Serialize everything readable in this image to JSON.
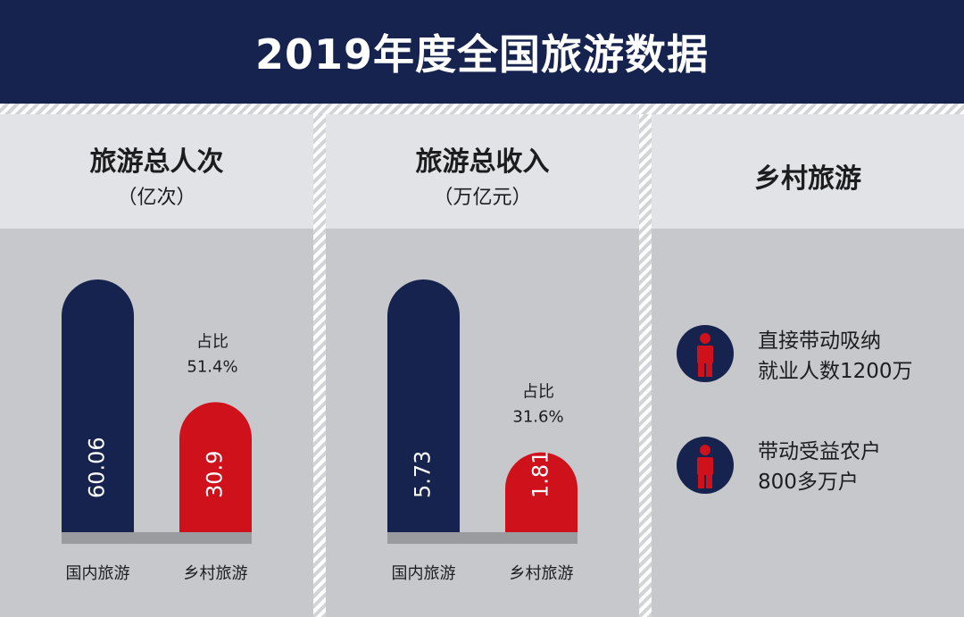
{
  "title": "2019年度全国旅游数据",
  "colors": {
    "navy": "#15234e",
    "red": "#cf111b",
    "base": "#9a9b9f"
  },
  "panels": [
    {
      "title": "旅游总人次",
      "unit": "（亿次）"
    },
    {
      "title": "旅游总收入",
      "unit": "（万亿元）"
    },
    {
      "title": "乡村旅游"
    }
  ],
  "chart_data": [
    {
      "type": "bar",
      "title": "旅游总人次",
      "ylabel": "（亿次）",
      "categories": [
        "国内旅游",
        "乡村旅游"
      ],
      "values": [
        60.06,
        30.9
      ],
      "value_labels": [
        "60.06",
        "30.9"
      ],
      "annotation": {
        "label": "占比",
        "value": "51.4%"
      }
    },
    {
      "type": "bar",
      "title": "旅游总收入",
      "ylabel": "（万亿元）",
      "categories": [
        "国内旅游",
        "乡村旅游"
      ],
      "values": [
        5.73,
        1.81
      ],
      "value_labels": [
        "5.73",
        "1.81"
      ],
      "annotation": {
        "label": "占比",
        "value": "31.6%"
      }
    }
  ],
  "rural": [
    {
      "icon": "person-icon",
      "line1": "直接带动吸纳",
      "line2": "就业人数1200万"
    },
    {
      "icon": "person-icon",
      "line1": "带动受益农户",
      "line2": "800多万户"
    }
  ]
}
